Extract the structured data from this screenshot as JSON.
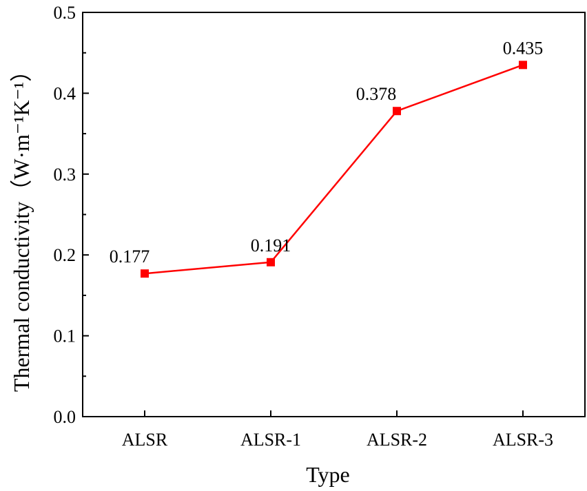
{
  "chart_data": {
    "type": "line",
    "title": "",
    "xlabel": "Type",
    "ylabel": "Thermal conductivity（W·m⁻¹K⁻¹）",
    "categories": [
      "ALSR",
      "ALSR-1",
      "ALSR-2",
      "ALSR-3"
    ],
    "ylim": [
      0,
      0.5
    ],
    "yticks": [
      "0.0",
      "0.1",
      "0.2",
      "0.3",
      "0.4",
      "0.5"
    ],
    "series": [
      {
        "values": [
          0.177,
          0.191,
          0.378,
          0.435
        ],
        "labels": [
          "0.177",
          "0.191",
          "0.378",
          "0.435"
        ],
        "color": "#ff0000",
        "marker": "square"
      }
    ],
    "grid": false,
    "legend": "none"
  }
}
